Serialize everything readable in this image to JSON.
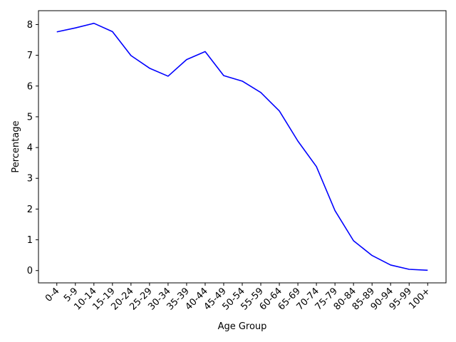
{
  "chart_data": {
    "type": "line",
    "title": "",
    "xlabel": "Age Group",
    "ylabel": "Percentage",
    "categories": [
      "0-4",
      "5-9",
      "10-14",
      "15-19",
      "20-24",
      "25-29",
      "30-34",
      "35-39",
      "40-44",
      "45-49",
      "50-54",
      "55-59",
      "60-64",
      "65-69",
      "70-74",
      "75-79",
      "80-84",
      "85-89",
      "90-94",
      "95-99",
      "100+"
    ],
    "series": [
      {
        "color": "#0000ff",
        "values": [
          7.76,
          7.89,
          8.04,
          7.77,
          6.99,
          6.58,
          6.32,
          6.86,
          7.12,
          6.34,
          6.16,
          5.79,
          5.19,
          4.21,
          3.38,
          1.95,
          0.97,
          0.49,
          0.18,
          0.04,
          0.01
        ]
      }
    ],
    "ylim": [
      -0.4,
      8.45
    ],
    "yticks": [
      0,
      1,
      2,
      3,
      4,
      5,
      6,
      7,
      8
    ],
    "grid": false,
    "legend": "none"
  }
}
